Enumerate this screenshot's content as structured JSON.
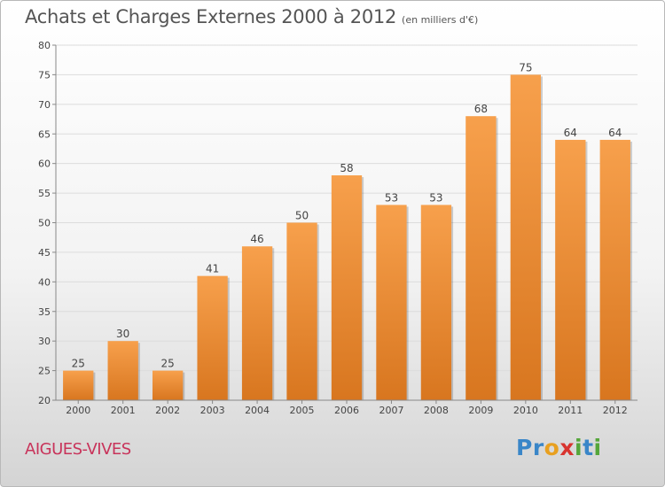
{
  "chart_data": {
    "type": "bar",
    "title": "Achats et Charges Externes 2000 à 2012",
    "subtitle": "(en milliers d'€)",
    "categories": [
      "2000",
      "2001",
      "2002",
      "2003",
      "2004",
      "2005",
      "2006",
      "2007",
      "2008",
      "2009",
      "2010",
      "2011",
      "2012"
    ],
    "values": [
      25,
      30,
      25,
      41,
      46,
      50,
      58,
      53,
      53,
      68,
      75,
      64,
      64
    ],
    "ylim": [
      20,
      80
    ],
    "yticks": [
      20,
      25,
      30,
      35,
      40,
      45,
      50,
      55,
      60,
      65,
      70,
      75,
      80
    ],
    "grid": true,
    "bar_color_top": "#f7a04c",
    "bar_color_bottom": "#d8761f"
  },
  "location": "AIGUES-VIVES",
  "logo": {
    "letters": [
      "P",
      "r",
      "o",
      "x",
      "i",
      "t",
      "i"
    ],
    "colors": [
      "#3a86c8",
      "#3a86c8",
      "#e8a020",
      "#d8342f",
      "#55a63a",
      "#3a86c8",
      "#55a63a"
    ]
  }
}
